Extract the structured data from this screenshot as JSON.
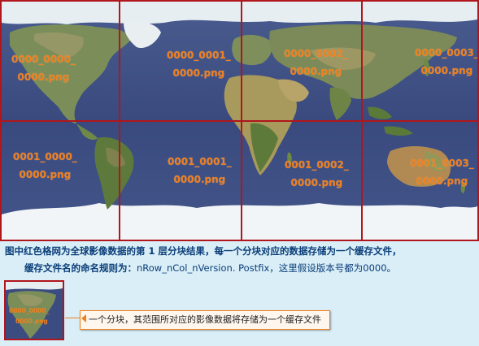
{
  "tiles": [
    {
      "id": "0000_0000",
      "line1": "0000_0000_",
      "line2": "0000.png"
    },
    {
      "id": "0000_0001",
      "line1": "0000_0001_",
      "line2": "0000.png"
    },
    {
      "id": "0000_0002",
      "line1": "0000_0002_",
      "line2": "0000.png"
    },
    {
      "id": "0000_0003",
      "line1": "0000_0003_",
      "line2": "0000.png"
    },
    {
      "id": "0001_0000",
      "line1": "0001_0000_",
      "line2": "0000.png"
    },
    {
      "id": "0001_0001",
      "line1": "0001_0001_",
      "line2": "0000.png"
    },
    {
      "id": "0001_0002",
      "line1": "0001_0002_",
      "line2": "0000.png"
    },
    {
      "id": "0001_0003",
      "line1": "0001_0003_",
      "line2": "0000.png"
    }
  ],
  "caption": {
    "line1": "图中红色格网为全球影像数据的第 1 层分块结果，每一个分块对应的数据存储为一个缓存文件，",
    "line2_prefix": "缓存文件名的命名规则为：",
    "line2_rule": "nRow_nCol_nVersion. Postfix",
    "line2_suffix": "，这里假设版本号都为0000。"
  },
  "thumbnail": {
    "line1": "0000_0000_",
    "line2": "0000.png"
  },
  "callout": {
    "text": "一个分块，其范围所对应的影像数据将存储为一个缓存文件"
  },
  "colors": {
    "grid": "#b0161c",
    "label": "#f07f1c",
    "ocean": "#3b4d80",
    "caption_bg": "#d9eef7",
    "caption_text": "#0a3d78"
  }
}
